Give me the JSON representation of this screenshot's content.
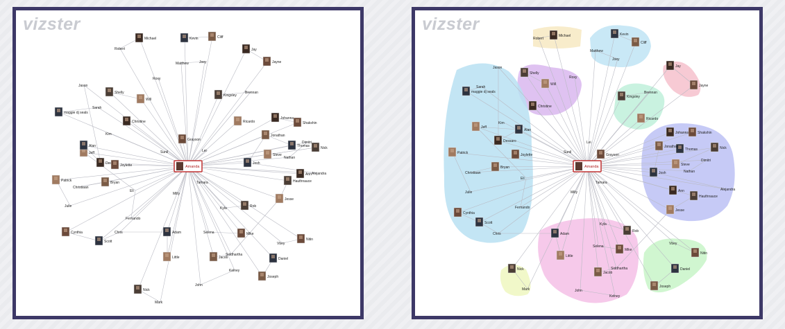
{
  "logo_text": "vizster",
  "center": {
    "name": "Amanda",
    "id": "Amanda"
  },
  "people": [
    {
      "name": "Michael",
      "photo": true
    },
    {
      "name": "Robert",
      "photo": false
    },
    {
      "name": "Kevin",
      "photo": true
    },
    {
      "name": "Cliff",
      "photo": true
    },
    {
      "name": "Matthew",
      "photo": false
    },
    {
      "name": "Joey",
      "photo": false
    },
    {
      "name": "Jay",
      "photo": true
    },
    {
      "name": "Jayne",
      "photo": true
    },
    {
      "name": "Roxy",
      "photo": false
    },
    {
      "name": "Jason",
      "photo": false
    },
    {
      "name": "Shelly",
      "photo": true
    },
    {
      "name": "Will",
      "photo": true
    },
    {
      "name": "Christine",
      "photo": true
    },
    {
      "name": "Sarah",
      "photo": false
    },
    {
      "name": "maggie dj seals",
      "photo": true
    },
    {
      "name": "Brennan",
      "photo": false
    },
    {
      "name": "Kingsley",
      "photo": true
    },
    {
      "name": "Ricardo",
      "photo": true
    },
    {
      "name": "Johanna",
      "photo": true
    },
    {
      "name": "Shakshin",
      "photo": true
    },
    {
      "name": "Thomas",
      "photo": true
    },
    {
      "name": "Jonathan",
      "photo": true
    },
    {
      "name": "Nick",
      "photo": true
    },
    {
      "name": "Steve",
      "photo": true
    },
    {
      "name": "Dimitri",
      "photo": false
    },
    {
      "name": "Nathan",
      "photo": false
    },
    {
      "name": "Josh",
      "photo": true
    },
    {
      "name": "Alejandra",
      "photo": false
    },
    {
      "name": "Hauthnauce",
      "photo": true
    },
    {
      "name": "Jesse",
      "photo": true
    },
    {
      "name": "Ann",
      "photo": true
    },
    {
      "name": "Grayson",
      "photo": true
    },
    {
      "name": "Sunil",
      "photo": false
    },
    {
      "name": "Lei",
      "photo": false
    },
    {
      "name": "Kim",
      "photo": false
    },
    {
      "name": "Jeff",
      "photo": true
    },
    {
      "name": "Dessaro",
      "photo": true
    },
    {
      "name": "Joylette",
      "photo": true
    },
    {
      "name": "Alan",
      "photo": true
    },
    {
      "name": "Bryan",
      "photo": true
    },
    {
      "name": "Christiaan",
      "photo": false
    },
    {
      "name": "Patrick",
      "photo": true
    },
    {
      "name": "Julie",
      "photo": false
    },
    {
      "name": "Cynthia",
      "photo": true
    },
    {
      "name": "Scott",
      "photo": true
    },
    {
      "name": "Chris",
      "photo": false
    },
    {
      "name": "Fernando",
      "photo": false
    },
    {
      "name": "Eli",
      "photo": false
    },
    {
      "name": "Milly",
      "photo": false
    },
    {
      "name": "Tamara",
      "photo": false
    },
    {
      "name": "Adam",
      "photo": true
    },
    {
      "name": "Kyla",
      "photo": false
    },
    {
      "name": "Rob",
      "photo": true
    },
    {
      "name": "Little",
      "photo": true
    },
    {
      "name": "Selena",
      "photo": false
    },
    {
      "name": "Mike",
      "photo": true
    },
    {
      "name": "Siddhartha",
      "photo": false
    },
    {
      "name": "Jacob",
      "photo": true
    },
    {
      "name": "John",
      "photo": false
    },
    {
      "name": "Kelney",
      "photo": false
    },
    {
      "name": "Vbey",
      "photo": false
    },
    {
      "name": "Nitin",
      "photo": true
    },
    {
      "name": "Daniel",
      "photo": true
    },
    {
      "name": "Joseph",
      "photo": true
    },
    {
      "name": "Nick",
      "photo": true
    },
    {
      "name": "Mark",
      "photo": false
    }
  ],
  "clusters": [
    {
      "name": "a",
      "color": "#f7e9c2",
      "members": [
        0,
        1
      ]
    },
    {
      "name": "b",
      "color": "#bfe4f5",
      "members": [
        2,
        3,
        4,
        5
      ]
    },
    {
      "name": "c",
      "color": "#f6c1cc",
      "members": [
        6,
        7
      ]
    },
    {
      "name": "d",
      "color": "#d9b7ef",
      "members": [
        8,
        10,
        11,
        12
      ]
    },
    {
      "name": "e",
      "color": "#bff0da",
      "members": [
        15,
        16,
        17
      ]
    },
    {
      "name": "f",
      "color": "#bcc1f5",
      "members": [
        18,
        19,
        20,
        21,
        22,
        23,
        24,
        25,
        26,
        27,
        28,
        29,
        30
      ]
    },
    {
      "name": "g",
      "color": "#b8e0f2",
      "members": [
        9,
        13,
        14,
        34,
        35,
        36,
        37,
        38,
        39,
        40,
        41,
        42,
        43,
        44,
        45,
        46,
        47
      ]
    },
    {
      "name": "h",
      "color": "#f5bfe6",
      "members": [
        50,
        51,
        52,
        53,
        54,
        55,
        56,
        57,
        58,
        59
      ]
    },
    {
      "name": "i",
      "color": "#c8f5c8",
      "members": [
        60,
        61,
        62,
        63
      ]
    },
    {
      "name": "j",
      "color": "#eef7bf",
      "members": [
        64,
        65
      ]
    }
  ]
}
